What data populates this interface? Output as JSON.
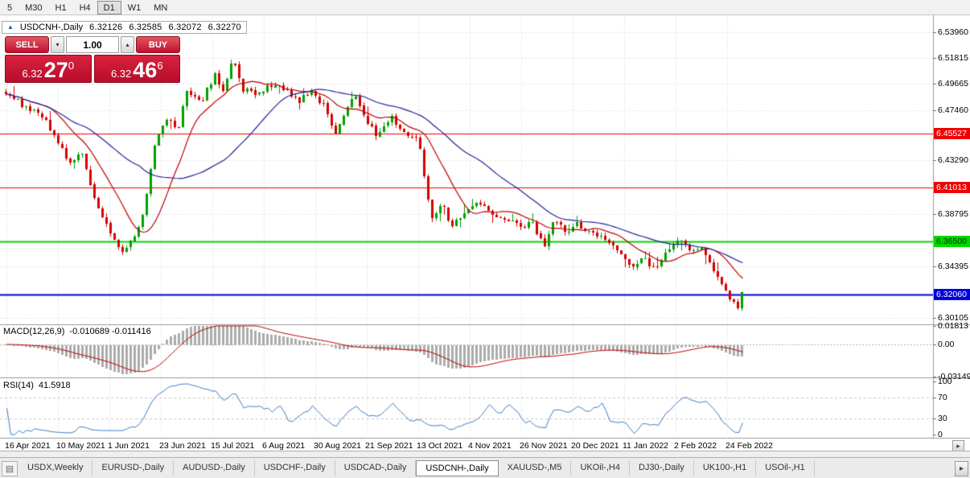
{
  "toolbar": {
    "timeframes": [
      {
        "label": "5",
        "active": false
      },
      {
        "label": "M30",
        "active": false
      },
      {
        "label": "H1",
        "active": false
      },
      {
        "label": "H4",
        "active": false
      },
      {
        "label": "D1",
        "active": true
      },
      {
        "label": "W1",
        "active": false
      },
      {
        "label": "MN",
        "active": false
      }
    ]
  },
  "info": {
    "symbol": "USDCNH-,Daily",
    "open": "6.32126",
    "high": "6.32585",
    "low": "6.32072",
    "close": "6.32270"
  },
  "trade": {
    "sell_label": "SELL",
    "buy_label": "BUY",
    "volume": "1.00",
    "sell_price": {
      "prefix": "6.32",
      "big": "27",
      "sup": "0"
    },
    "buy_price": {
      "prefix": "6.32",
      "big": "46",
      "sup": "6"
    }
  },
  "chart": {
    "price_range": {
      "max": 6.553,
      "min": 6.2965
    },
    "grid_color": "#d6d6d6",
    "ticks": [
      {
        "label": "6.53960",
        "value": 6.5396
      },
      {
        "label": "6.51815",
        "value": 6.51815
      },
      {
        "label": "6.49665",
        "value": 6.49665
      },
      {
        "label": "6.47460",
        "value": 6.4746
      },
      {
        "label": "6.43290",
        "value": 6.4329
      },
      {
        "label": "6.38795",
        "value": 6.38795
      },
      {
        "label": "6.34395",
        "value": 6.34395
      },
      {
        "label": "6.30105",
        "value": 6.30105
      }
    ],
    "level_lines": [
      {
        "label": "6.45527",
        "value": 6.45527,
        "color": "#f00000",
        "text_color": "#ffffff",
        "width": 1
      },
      {
        "label": "6.41013",
        "value": 6.41013,
        "color": "#f00000",
        "text_color": "#ffffff",
        "width": 1
      },
      {
        "label": "6.36500",
        "value": 6.365,
        "color": "#00d800",
        "text_color": "#003000",
        "width": 2
      },
      {
        "label": "6.32060",
        "value": 6.3206,
        "color": "#0000dc",
        "text_color": "#ffffff",
        "width": 2
      }
    ],
    "candles": {
      "count": 184,
      "seed": 1337,
      "noise": 0.0046,
      "wick": 0.0032,
      "up_color": "#00a000",
      "down_color": "#d40000",
      "anchors": [
        [
          0.0,
          6.49
        ],
        [
          0.025,
          6.478
        ],
        [
          0.05,
          6.47
        ],
        [
          0.069,
          6.45
        ],
        [
          0.088,
          6.43
        ],
        [
          0.101,
          6.442
        ],
        [
          0.12,
          6.4
        ],
        [
          0.139,
          6.375
        ],
        [
          0.158,
          6.358
        ],
        [
          0.177,
          6.368
        ],
        [
          0.189,
          6.395
        ],
        [
          0.202,
          6.445
        ],
        [
          0.221,
          6.47
        ],
        [
          0.233,
          6.456
        ],
        [
          0.246,
          6.49
        ],
        [
          0.265,
          6.48
        ],
        [
          0.284,
          6.505
        ],
        [
          0.296,
          6.49
        ],
        [
          0.309,
          6.52
        ],
        [
          0.322,
          6.492
        ],
        [
          0.34,
          6.488
        ],
        [
          0.359,
          6.496
        ],
        [
          0.378,
          6.492
        ],
        [
          0.397,
          6.482
        ],
        [
          0.416,
          6.492
        ],
        [
          0.435,
          6.475
        ],
        [
          0.448,
          6.455
        ],
        [
          0.46,
          6.47
        ],
        [
          0.473,
          6.488
        ],
        [
          0.492,
          6.465
        ],
        [
          0.504,
          6.452
        ],
        [
          0.523,
          6.47
        ],
        [
          0.542,
          6.455
        ],
        [
          0.561,
          6.448
        ],
        [
          0.578,
          6.385
        ],
        [
          0.593,
          6.396
        ],
        [
          0.605,
          6.378
        ],
        [
          0.624,
          6.39
        ],
        [
          0.643,
          6.398
        ],
        [
          0.662,
          6.388
        ],
        [
          0.681,
          6.382
        ],
        [
          0.7,
          6.378
        ],
        [
          0.715,
          6.38
        ],
        [
          0.732,
          6.362
        ],
        [
          0.746,
          6.384
        ],
        [
          0.763,
          6.372
        ],
        [
          0.775,
          6.379
        ],
        [
          0.794,
          6.373
        ],
        [
          0.813,
          6.368
        ],
        [
          0.832,
          6.355
        ],
        [
          0.851,
          6.345
        ],
        [
          0.864,
          6.352
        ],
        [
          0.883,
          6.34
        ],
        [
          0.901,
          6.36
        ],
        [
          0.92,
          6.368
        ],
        [
          0.933,
          6.355
        ],
        [
          0.946,
          6.362
        ],
        [
          0.958,
          6.345
        ],
        [
          0.971,
          6.333
        ],
        [
          0.983,
          6.318
        ],
        [
          0.996,
          6.308
        ],
        [
          1.0,
          6.3227
        ]
      ]
    },
    "ma_lines": [
      {
        "period": 12,
        "color": "#c00000"
      },
      {
        "period": 34,
        "color": "#24249a"
      }
    ],
    "dates": [
      "16 Apr 2021",
      "10 May 2021",
      "1 Jun 2021",
      "23 Jun 2021",
      "15 Jul 2021",
      "6 Aug 2021",
      "30 Aug 2021",
      "21 Sep 2021",
      "13 Oct 2021",
      "4 Nov 2021",
      "26 Nov 2021",
      "20 Dec 2021",
      "11 Jan 2022",
      "2 Feb 2022",
      "24 Feb 2022"
    ],
    "macd": {
      "title": "MACD(12,26,9)",
      "values": "-0.010689 -0.011416",
      "fast": 12,
      "slow": 26,
      "signal_period": 9,
      "scale": {
        "max": 0.0181,
        "min": -0.0315
      },
      "axis_labels": [
        {
          "label": "0.01813",
          "value": 0.0181
        },
        {
          "label": "0.00",
          "value": 0
        },
        {
          "label": "-0.03149",
          "value": -0.0315
        }
      ],
      "hist_color": "#ababab",
      "line_color": "#c00000"
    },
    "rsi": {
      "title": "RSI(14)",
      "value": "41.5918",
      "period": 14,
      "color": "#3a7ec8",
      "levels": [
        70,
        30
      ],
      "axis_labels": [
        {
          "label": "100",
          "value": 100
        },
        {
          "label": "70",
          "value": 70
        },
        {
          "label": "30",
          "value": 30
        },
        {
          "label": "0",
          "value": 0
        }
      ]
    }
  },
  "tabs": {
    "items": [
      {
        "label": "USDX,Weekly",
        "active": false
      },
      {
        "label": "EURUSD-,Daily",
        "active": false
      },
      {
        "label": "AUDUSD-,Daily",
        "active": false
      },
      {
        "label": "USDCHF-,Daily",
        "active": false
      },
      {
        "label": "USDCAD-,Daily",
        "active": false
      },
      {
        "label": "USDCNH-,Daily",
        "active": true
      },
      {
        "label": "XAUUSD-,M5",
        "active": false
      },
      {
        "label": "UKOil-,H4",
        "active": false
      },
      {
        "label": "DJ30-,Daily",
        "active": false
      },
      {
        "label": "UK100-,H1",
        "active": false
      },
      {
        "label": "USOil-,H1",
        "active": false
      }
    ]
  }
}
